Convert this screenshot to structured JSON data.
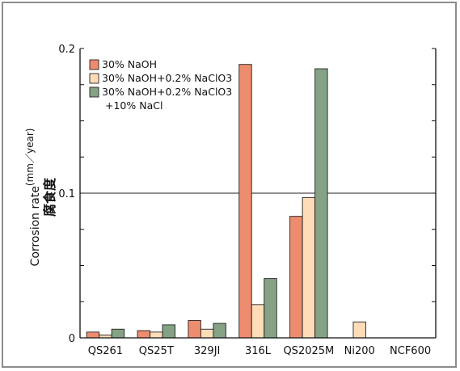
{
  "chart_data": {
    "type": "bar",
    "categories": [
      "QS261",
      "QS25T",
      "329JI",
      "316L",
      "QS2025M",
      "Ni200",
      "NCF600"
    ],
    "series": [
      {
        "name": "30% NaOH",
        "color": "#ee8c70",
        "values": [
          0.004,
          0.005,
          0.012,
          0.189,
          0.084,
          0,
          0
        ]
      },
      {
        "name": "30% NaOH+0.2% NaClO3",
        "color": "#fedcb8",
        "values": [
          0.002,
          0.004,
          0.006,
          0.023,
          0.097,
          0.011,
          0
        ]
      },
      {
        "name": "30% NaOH+0.2% NaClO3 +10% NaCl",
        "name_line1": "30% NaOH+0.2% NaClO3",
        "name_line2": "+10% NaCl",
        "color": "#85a285",
        "values": [
          0.006,
          0.009,
          0.01,
          0.041,
          0.186,
          0,
          0
        ]
      }
    ],
    "ylim": [
      0,
      0.2
    ],
    "yticks": [
      "0",
      "0.1",
      "0.2"
    ],
    "ylabel": "Corrosion rate",
    "ylabel_unit": "(mm／year)",
    "ylabel_jp": "腐食度",
    "reference_line": 0.1,
    "legend_position": "top-left"
  }
}
